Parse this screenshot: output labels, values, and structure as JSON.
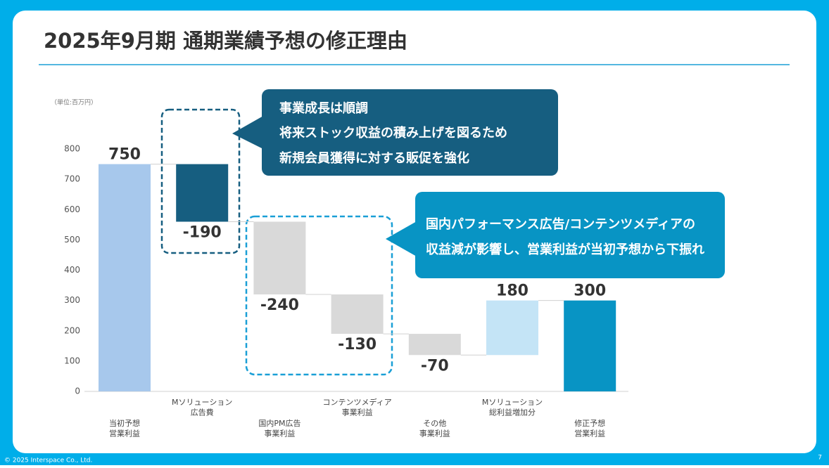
{
  "chart_data": {
    "type": "waterfall",
    "title": "2025年9月期 通期業績予想の修正理由",
    "unit_label": "（単位:百万円）",
    "categories": [
      [
        "当初予想",
        "営業利益"
      ],
      [
        "Mソリューション",
        "広告費"
      ],
      [
        "国内PM広告",
        "事業利益"
      ],
      [
        "コンテンツメディア",
        "事業利益"
      ],
      [
        "その他",
        "事業利益"
      ],
      [
        "Mソリューション",
        "総利益増加分"
      ],
      [
        "修正予想",
        "営業利益"
      ]
    ],
    "values": [
      750,
      -190,
      -240,
      -130,
      -70,
      180,
      300
    ],
    "colors": [
      "#a7c8ec",
      "#165e80",
      "#d9d9d9",
      "#d9d9d9",
      "#d9d9d9",
      "#c4e4f6",
      "#0894c4"
    ],
    "ylim": [
      0,
      800
    ],
    "yticks": [
      0,
      100,
      200,
      300,
      400,
      500,
      600,
      700,
      800
    ],
    "grid": false,
    "annotations": [
      [
        "事業成長は順調",
        "将来ストック収益の積み上げを図るため",
        "新規会員獲得に対する販促を強化"
      ],
      [
        "国内パフォーマンス広告/コンテンツメディアの",
        "収益減が影響し、営業利益が当初予想から下振れ"
      ]
    ]
  },
  "footer": {
    "copyright": "© 2025 Interspace Co., Ltd.",
    "page": "7"
  }
}
